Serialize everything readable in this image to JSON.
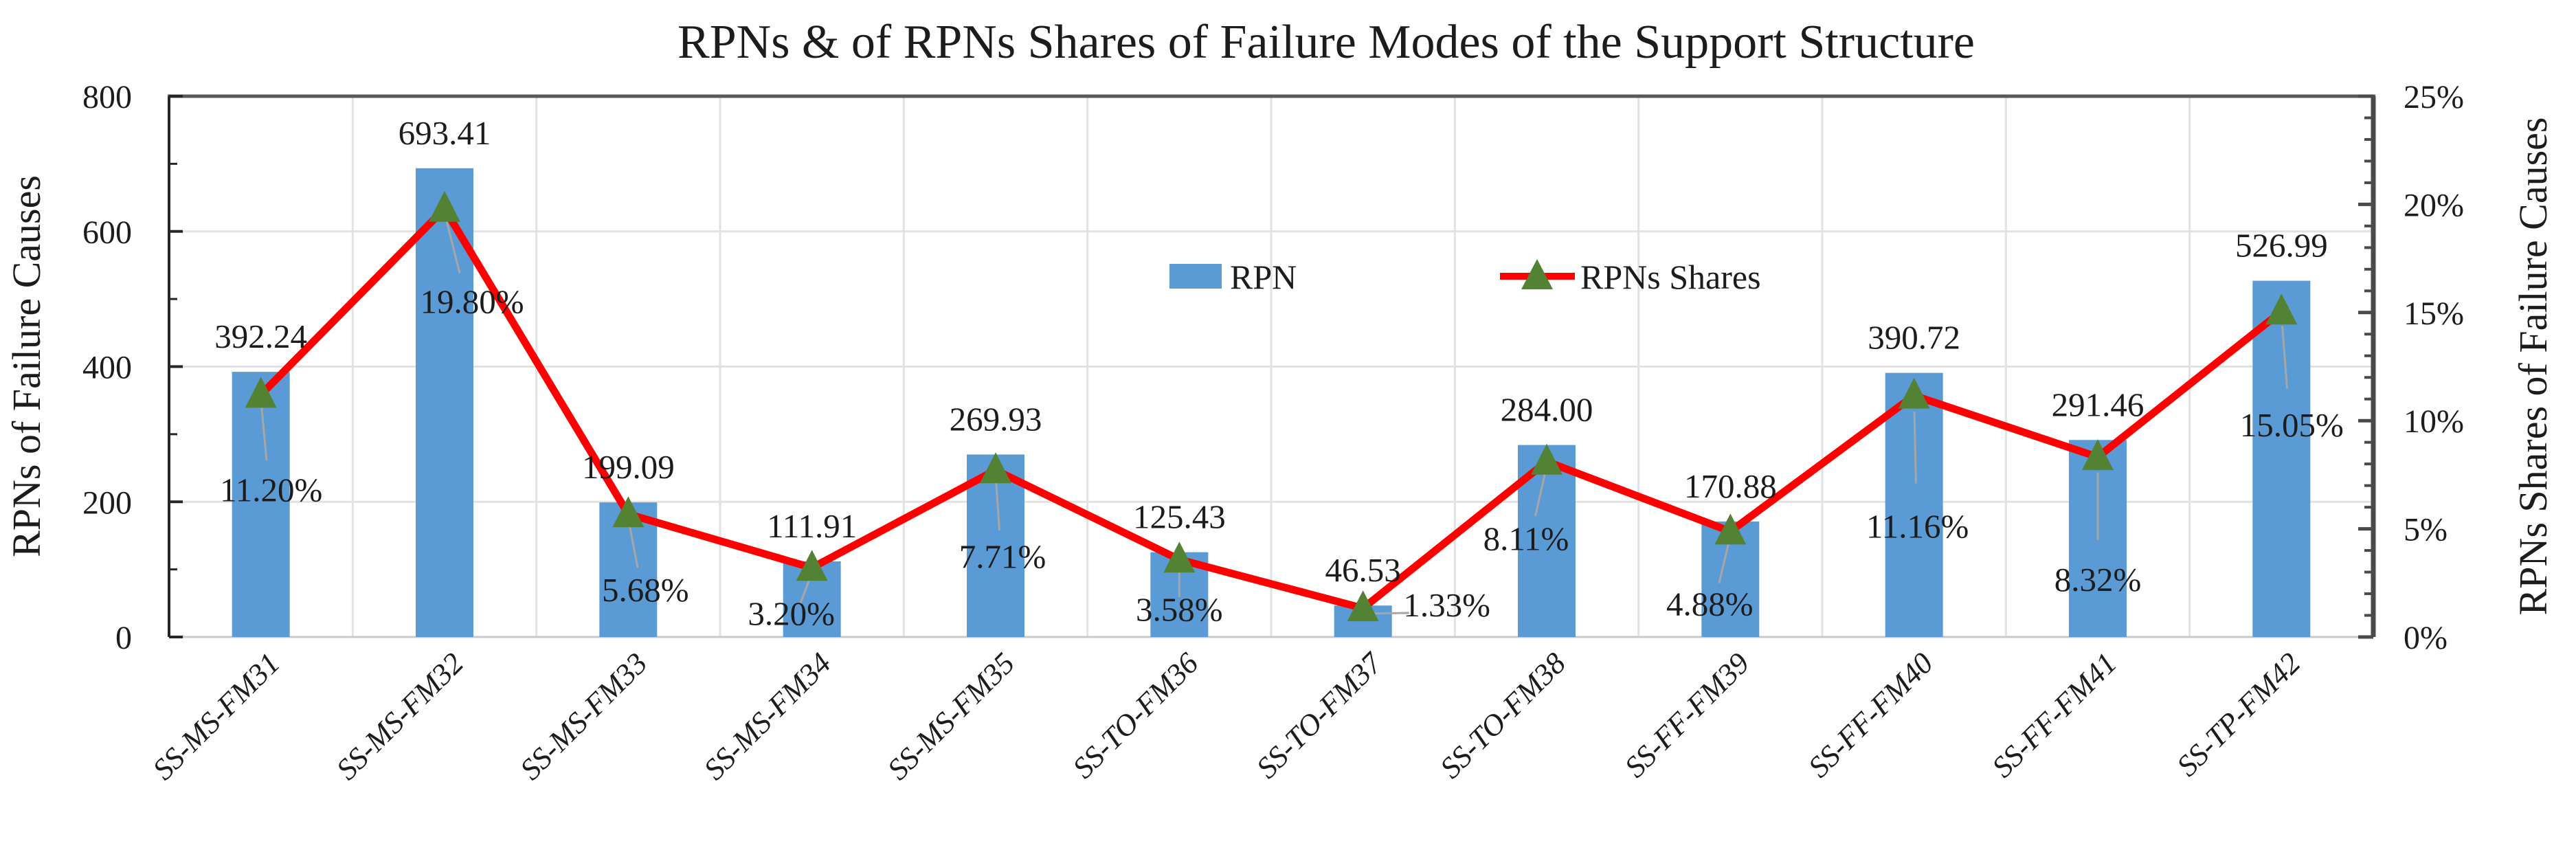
{
  "chart_data": {
    "type": "bar+line-combo",
    "title": "RPNs &amp; of RPNs Shares of Failure Modes of the Support Structure",
    "categories": [
      "SS-MS-FM31",
      "SS-MS-FM32",
      "SS-MS-FM33",
      "SS-MS-FM34",
      "SS-MS-FM35",
      "SS-TO-FM36",
      "SS-TO-FM37",
      "SS-TO-FM38",
      "SS-FF-FM39",
      "SS-FF-FM40",
      "SS-FF-FM41",
      "SS-TP-FM42"
    ],
    "series": [
      {
        "name": "RPN",
        "type": "bar",
        "axis": "left",
        "values": [
          392.24,
          693.41,
          199.09,
          111.91,
          269.93,
          125.43,
          46.53,
          284.0,
          170.88,
          390.72,
          291.46,
          526.99
        ],
        "labels": [
          "392.24",
          "693.41",
          "199.09",
          "111.91",
          "269.93",
          "125.43",
          "46.53",
          "284.00",
          "170.88",
          "390.72",
          "291.46",
          "526.99"
        ]
      },
      {
        "name": "RPNs Shares",
        "type": "line",
        "axis": "right",
        "marker": "triangle",
        "values": [
          11.2,
          19.8,
          5.68,
          3.2,
          7.71,
          3.58,
          1.33,
          8.11,
          4.88,
          11.16,
          8.32,
          15.05
        ],
        "labels": [
          "11.20%",
          "19.80%",
          "5.68%",
          "3.20%",
          "7.71%",
          "3.58%",
          "1.33%",
          "8.11%",
          "4.88%",
          "11.16%",
          "8.32%",
          "15.05%"
        ]
      }
    ],
    "left_axis": {
      "title": "RPNs of Failure Causes",
      "min": 0,
      "max": 800,
      "major_step": 200,
      "minor_step": 100,
      "ticks": [
        "0",
        "200",
        "400",
        "600",
        "800"
      ]
    },
    "right_axis": {
      "title": "RPNs Shares of Failure Causes",
      "min": 0,
      "max": 25,
      "major_step": 5,
      "minor_step": 1,
      "ticks": [
        "0%",
        "5%",
        "10%",
        "15%",
        "20%",
        "25%"
      ]
    },
    "legend": {
      "position": "inside-upper-middle",
      "entries": [
        "RPN",
        "RPNs Shares"
      ]
    },
    "gridlines": {
      "horizontal": true,
      "vertical": true
    },
    "colors": {
      "bar": "#5B9BD5",
      "line": "#FE0000",
      "marker": "#548235",
      "grid": "#E2E2E2",
      "axis_left": "#262626",
      "axis_right": "#4A4A4A",
      "border_top": "#595959",
      "axis_bottom": "#C9C9C9",
      "leader": "#A6A6A6",
      "text": "#1C1C1C"
    },
    "label_offsets": {
      "share_dx": [
        15,
        40,
        25,
        -30,
        10,
        0,
        122,
        -30,
        -30,
        5,
        0,
        15
      ],
      "share_dy": [
        138,
        135,
        110,
        66,
        125,
        72,
        -5,
        112,
        105,
        190,
        178,
        165
      ],
      "value_dy": -52
    }
  }
}
